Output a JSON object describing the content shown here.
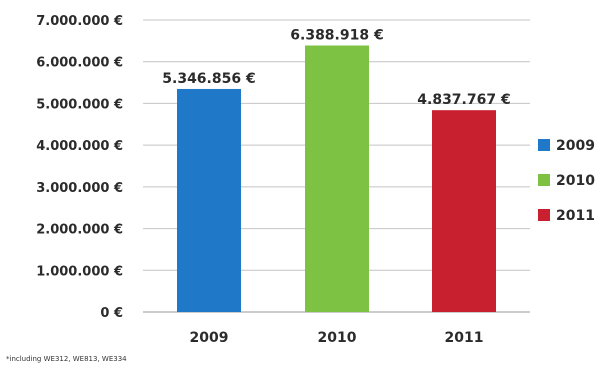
{
  "chart_data": {
    "type": "bar",
    "categories": [
      "2009",
      "2010",
      "2011"
    ],
    "values": [
      5346856,
      6388918,
      4837767
    ],
    "value_labels": [
      "5.346.856 €",
      "6.388.918 €",
      "4.837.767 €"
    ],
    "colors": [
      "#1f78c8",
      "#7dc242",
      "#c8202f"
    ],
    "ylim": [
      0,
      7000000
    ],
    "y_ticks": [
      0,
      1000000,
      2000000,
      3000000,
      4000000,
      5000000,
      6000000,
      7000000
    ],
    "y_tick_labels": [
      "0 €",
      "1.000.000 €",
      "2.000.000 €",
      "3.000.000 €",
      "4.000.000 €",
      "5.000.000 €",
      "6.000.000 €",
      "7.000.000 €"
    ],
    "legend": {
      "position": "right",
      "entries": [
        {
          "label": "2009",
          "color": "#1f78c8"
        },
        {
          "label": "2010",
          "color": "#7dc242"
        },
        {
          "label": "2011",
          "color": "#c8202f"
        }
      ]
    },
    "grid": true,
    "title": "",
    "xlabel": "",
    "ylabel": ""
  },
  "footnote": "*including WE312, WE813, WE334"
}
